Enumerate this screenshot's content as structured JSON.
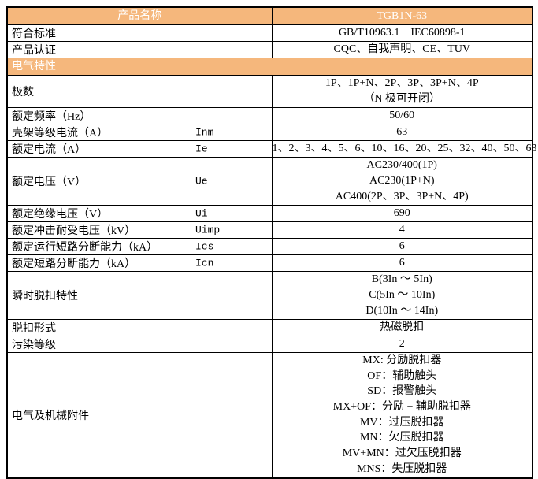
{
  "table": {
    "colors": {
      "accent": "#F5B77C",
      "border": "#000000",
      "header_text": "#FFFFFF",
      "body_text": "#000000"
    },
    "header": {
      "col1": "产品名称",
      "col2": "TGB1N-63"
    },
    "rows": [
      {
        "type": "data",
        "label": "符合标准",
        "value": [
          "GB/T10963.1    IEC60898-1"
        ]
      },
      {
        "type": "data",
        "label": "产品认证",
        "value": [
          "CQC、自我声明、CE、TUV"
        ]
      },
      {
        "type": "section",
        "label": "电气特性"
      },
      {
        "type": "data",
        "label": "极数",
        "value": [
          "1P、1P+N、2P、3P、3P+N、4P",
          "（N 极可开闭）"
        ]
      },
      {
        "type": "data",
        "label": "额定频率（Hz）",
        "value": [
          "50/60"
        ]
      },
      {
        "type": "data",
        "label": "壳架等级电流（A）",
        "symbol": "Inm",
        "value": [
          "63"
        ]
      },
      {
        "type": "data",
        "label": "额定电流（A）",
        "symbol": "Ie",
        "value": [
          "1、2、3、4、5、6、10、16、20、25、32、40、50、63"
        ]
      },
      {
        "type": "data",
        "label": "额定电压（V）",
        "symbol": "Ue",
        "value": [
          "AC230/400(1P)",
          "AC230(1P+N)",
          "AC400(2P、3P、3P+N、4P)"
        ]
      },
      {
        "type": "data",
        "label": "额定绝缘电压（V）",
        "symbol": "Ui",
        "value": [
          "690"
        ]
      },
      {
        "type": "data",
        "label": "额定冲击耐受电压（kV）",
        "symbol": "Uimp",
        "value": [
          "4"
        ]
      },
      {
        "type": "data",
        "label": "额定运行短路分断能力（kA）",
        "symbol": "Ics",
        "value": [
          "6"
        ]
      },
      {
        "type": "data",
        "label": "额定短路分断能力（kA）",
        "symbol": "Icn",
        "value": [
          "6"
        ]
      },
      {
        "type": "data",
        "label": "瞬时脱扣特性",
        "value": [
          "B(3In ～ 5In)",
          "C(5In ～ 10In)",
          "D(10In ～ 14In)"
        ]
      },
      {
        "type": "data",
        "label": "脱扣形式",
        "value": [
          "热磁脱扣"
        ]
      },
      {
        "type": "data",
        "label": "污染等级",
        "value": [
          "2"
        ]
      },
      {
        "type": "data",
        "label": "电气及机械附件",
        "value": [
          "MX: 分励脱扣器",
          "OF：辅助触头",
          "SD：报警触头",
          "MX+OF：分励 + 辅助脱扣器",
          "MV：过压脱扣器",
          "MN：欠压脱扣器",
          "MV+MN：过欠压脱扣器",
          "MNS：失压脱扣器"
        ]
      }
    ]
  }
}
